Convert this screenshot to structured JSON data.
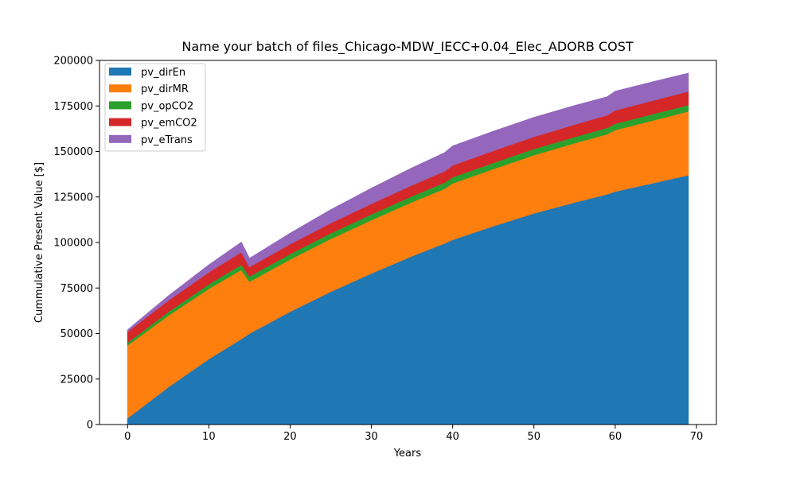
{
  "chart_data": {
    "type": "area",
    "stacked": true,
    "title": "Name your batch of files_Chicago-MDW_IECC+0.04_Elec_ADORB COST",
    "xlabel": "Years",
    "ylabel": "Cummulative Present Value [$]",
    "xlim": [
      -3.45,
      72.45
    ],
    "ylim": [
      0,
      200000
    ],
    "xticks": [
      0,
      10,
      20,
      30,
      40,
      50,
      60,
      70
    ],
    "yticks": [
      0,
      25000,
      50000,
      75000,
      100000,
      125000,
      150000,
      175000,
      200000
    ],
    "legend_position": "upper-left",
    "x": [
      0,
      5,
      10,
      14,
      15,
      20,
      25,
      30,
      35,
      39,
      40,
      45,
      50,
      55,
      59,
      60,
      65,
      69
    ],
    "series": [
      {
        "name": "pv_dirEn",
        "color": "#1f77b4",
        "values": [
          3500,
          20500,
          36000,
          47000,
          50000,
          62000,
          73000,
          83000,
          92500,
          99500,
          101500,
          109000,
          116000,
          122000,
          126500,
          128000,
          133000,
          137000
        ]
      },
      {
        "name": "pv_dirMR",
        "color": "#ff7f0e",
        "values": [
          40000,
          39300,
          38600,
          38000,
          28500,
          28700,
          29000,
          29300,
          29700,
          30000,
          31000,
          31400,
          32000,
          32600,
          33000,
          33800,
          34500,
          35000
        ]
      },
      {
        "name": "pv_opCO2",
        "color": "#2ca02c",
        "values": [
          1500,
          2000,
          2500,
          2800,
          2900,
          3000,
          3100,
          3200,
          3300,
          3400,
          3400,
          3400,
          3400,
          3400,
          3500,
          3500,
          3500,
          3500
        ]
      },
      {
        "name": "pv_emCO2",
        "color": "#d62728",
        "values": [
          6000,
          6300,
          6600,
          6900,
          5200,
          5400,
          5600,
          5800,
          6000,
          6200,
          6500,
          6600,
          6700,
          6800,
          6900,
          7300,
          7400,
          7500
        ]
      },
      {
        "name": "pv_eTrans",
        "color": "#9467bd",
        "values": [
          1000,
          2500,
          4000,
          5500,
          4700,
          6000,
          7300,
          8500,
          9500,
          10200,
          10600,
          10700,
          10600,
          10400,
          10100,
          10500,
          10300,
          10000
        ]
      }
    ]
  }
}
